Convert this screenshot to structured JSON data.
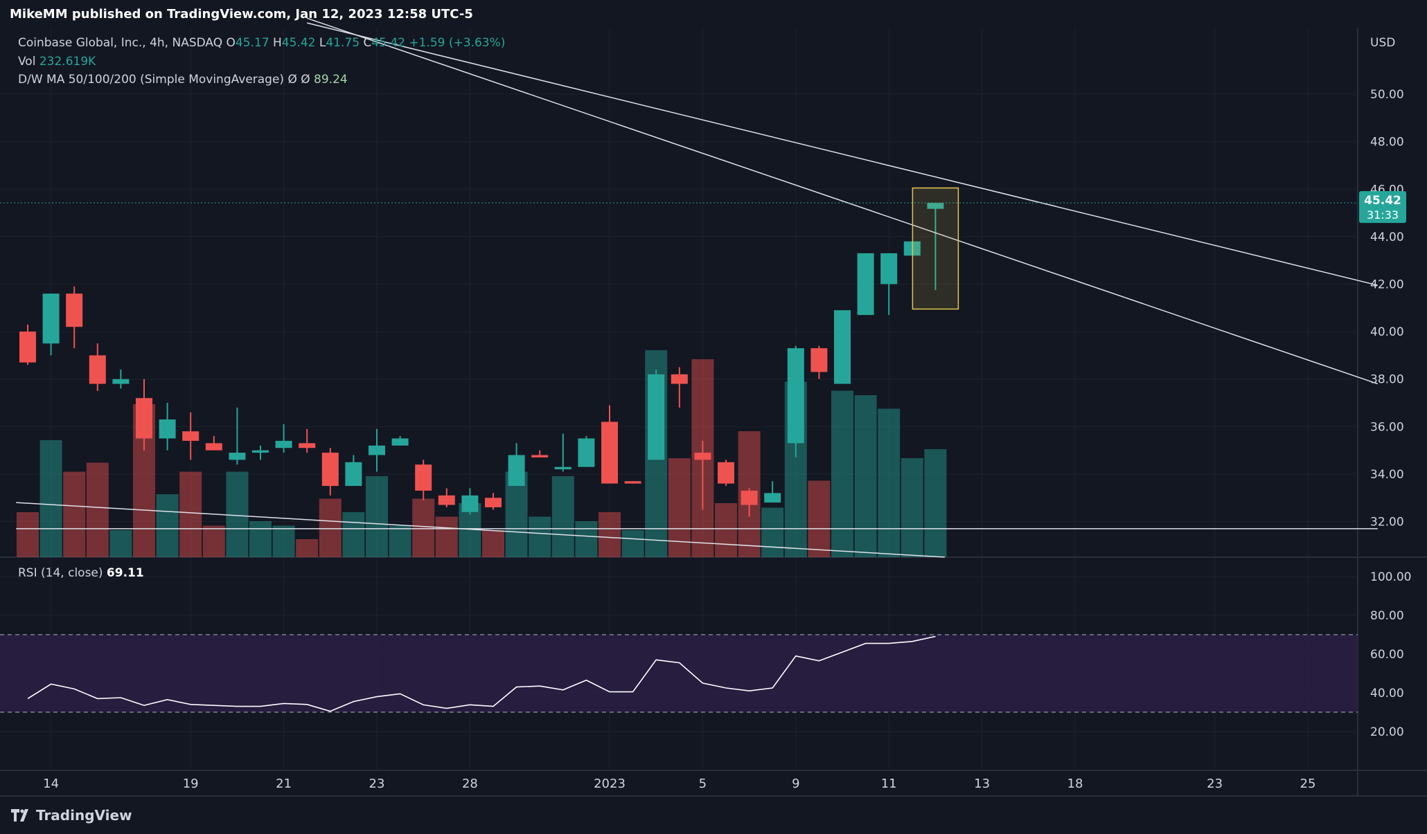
{
  "header": {
    "published_by": "MikeMM published on TradingView.com, Jan 12, 2023 12:58 UTC-5"
  },
  "legend": {
    "symbol": "Coinbase Global, Inc., 4h, NASDAQ",
    "o_label": "O",
    "o_value": "45.17",
    "h_label": "H",
    "h_value": "45.42",
    "l_label": "L",
    "l_value": "41.75",
    "c_label": "C",
    "c_value": "45.42",
    "change": "+1.59 (+3.63%)",
    "vol_label": "Vol",
    "vol_value": "232.619K",
    "ma_label": "D/W MA 50/100/200 (Simple MovingAverage)",
    "ma_values": "Ø Ø",
    "ma_last": "89.24",
    "rsi_label": "RSI (14, close)",
    "rsi_value": "69.11"
  },
  "price_axis": {
    "currency": "USD",
    "last_price": "45.42",
    "countdown": "31:33"
  },
  "footer": {
    "brand": "TradingView"
  },
  "colors": {
    "background": "#131722",
    "up": "#26a69a",
    "down": "#ef5350",
    "rsi_line": "#ffffff",
    "rsi_band": "#2a1f44",
    "highlight": "#e5c64e"
  },
  "chart_data": [
    {
      "type": "candlestick",
      "title": "Coinbase Global, Inc., 4h, NASDAQ",
      "ylim": [
        30.5,
        52.8
      ],
      "y_ticks": [
        "50.00",
        "48.00",
        "46.00",
        "44.00",
        "42.00",
        "40.00",
        "38.00",
        "36.00",
        "34.00",
        "32.00"
      ],
      "x_ticks": [
        {
          "label": "14",
          "i": 1
        },
        {
          "label": "19",
          "i": 7
        },
        {
          "label": "21",
          "i": 11
        },
        {
          "label": "23",
          "i": 15
        },
        {
          "label": "28",
          "i": 19
        },
        {
          "label": "2023",
          "i": 25
        },
        {
          "label": "5",
          "i": 29
        },
        {
          "label": "9",
          "i": 33
        },
        {
          "label": "11",
          "i": 37
        },
        {
          "label": "13",
          "i": 41
        },
        {
          "label": "18",
          "i": 45
        },
        {
          "label": "23",
          "i": 51
        },
        {
          "label": "25",
          "i": 55
        }
      ],
      "candles": [
        {
          "o": 40.0,
          "h": 40.3,
          "l": 38.6,
          "c": 38.7
        },
        {
          "o": 39.5,
          "h": 41.6,
          "l": 39.0,
          "c": 41.6
        },
        {
          "o": 41.6,
          "h": 41.9,
          "l": 39.3,
          "c": 40.2
        },
        {
          "o": 39.0,
          "h": 39.5,
          "l": 37.5,
          "c": 37.8
        },
        {
          "o": 37.8,
          "h": 38.4,
          "l": 37.6,
          "c": 38.0
        },
        {
          "o": 37.2,
          "h": 38.0,
          "l": 35.0,
          "c": 35.5
        },
        {
          "o": 35.5,
          "h": 37.0,
          "l": 35.0,
          "c": 36.3
        },
        {
          "o": 35.8,
          "h": 36.6,
          "l": 34.6,
          "c": 35.4
        },
        {
          "o": 35.3,
          "h": 35.6,
          "l": 35.0,
          "c": 35.0
        },
        {
          "o": 34.6,
          "h": 36.8,
          "l": 34.4,
          "c": 34.9
        },
        {
          "o": 34.9,
          "h": 35.2,
          "l": 34.6,
          "c": 35.0
        },
        {
          "o": 35.1,
          "h": 36.1,
          "l": 34.9,
          "c": 35.4
        },
        {
          "o": 35.3,
          "h": 35.9,
          "l": 34.9,
          "c": 35.1
        },
        {
          "o": 34.9,
          "h": 35.1,
          "l": 33.1,
          "c": 33.5
        },
        {
          "o": 33.5,
          "h": 34.8,
          "l": 33.5,
          "c": 34.5
        },
        {
          "o": 34.8,
          "h": 35.9,
          "l": 34.1,
          "c": 35.2
        },
        {
          "o": 35.2,
          "h": 35.6,
          "l": 35.2,
          "c": 35.5
        },
        {
          "o": 34.4,
          "h": 34.6,
          "l": 32.9,
          "c": 33.3
        },
        {
          "o": 33.1,
          "h": 33.4,
          "l": 32.6,
          "c": 32.7
        },
        {
          "o": 32.4,
          "h": 33.4,
          "l": 32.3,
          "c": 33.1
        },
        {
          "o": 33.0,
          "h": 33.2,
          "l": 32.5,
          "c": 32.6
        },
        {
          "o": 33.5,
          "h": 35.3,
          "l": 33.5,
          "c": 34.8
        },
        {
          "o": 34.8,
          "h": 35.0,
          "l": 34.7,
          "c": 34.7
        },
        {
          "o": 34.2,
          "h": 35.7,
          "l": 34.1,
          "c": 34.3
        },
        {
          "o": 34.3,
          "h": 35.6,
          "l": 34.3,
          "c": 35.5
        },
        {
          "o": 36.2,
          "h": 36.9,
          "l": 33.6,
          "c": 33.6
        },
        {
          "o": 33.7,
          "h": 33.7,
          "l": 33.6,
          "c": 33.6
        },
        {
          "o": 34.6,
          "h": 38.4,
          "l": 34.6,
          "c": 38.2
        },
        {
          "o": 38.2,
          "h": 38.5,
          "l": 36.8,
          "c": 37.8
        },
        {
          "o": 34.9,
          "h": 35.4,
          "l": 32.5,
          "c": 34.6
        },
        {
          "o": 34.5,
          "h": 34.6,
          "l": 33.5,
          "c": 33.6
        },
        {
          "o": 33.3,
          "h": 33.4,
          "l": 32.2,
          "c": 32.7
        },
        {
          "o": 32.8,
          "h": 33.7,
          "l": 32.8,
          "c": 33.2
        },
        {
          "o": 35.3,
          "h": 39.4,
          "l": 34.7,
          "c": 39.3
        },
        {
          "o": 39.3,
          "h": 39.4,
          "l": 38.0,
          "c": 38.3
        },
        {
          "o": 37.8,
          "h": 40.9,
          "l": 37.8,
          "c": 40.9
        },
        {
          "o": 40.7,
          "h": 43.3,
          "l": 40.7,
          "c": 43.3
        },
        {
          "o": 42.0,
          "h": 43.3,
          "l": 40.7,
          "c": 43.3
        },
        {
          "o": 43.2,
          "h": 43.8,
          "l": 43.2,
          "c": 43.8
        },
        {
          "o": 45.17,
          "h": 45.42,
          "l": 41.75,
          "c": 45.42
        }
      ],
      "volume_max": 40,
      "volume": [
        {
          "v": 10,
          "up": false
        },
        {
          "v": 26,
          "up": true
        },
        {
          "v": 19,
          "up": false
        },
        {
          "v": 21,
          "up": false
        },
        {
          "v": 6,
          "up": true
        },
        {
          "v": 34,
          "up": false
        },
        {
          "v": 14,
          "up": true
        },
        {
          "v": 19,
          "up": false
        },
        {
          "v": 7,
          "up": false
        },
        {
          "v": 19,
          "up": true
        },
        {
          "v": 8,
          "up": true
        },
        {
          "v": 7,
          "up": true
        },
        {
          "v": 4,
          "up": false
        },
        {
          "v": 13,
          "up": false
        },
        {
          "v": 10,
          "up": true
        },
        {
          "v": 18,
          "up": true
        },
        {
          "v": 7,
          "up": true
        },
        {
          "v": 13,
          "up": false
        },
        {
          "v": 9,
          "up": false
        },
        {
          "v": 12,
          "up": true
        },
        {
          "v": 6,
          "up": false
        },
        {
          "v": 19,
          "up": true
        },
        {
          "v": 9,
          "up": true
        },
        {
          "v": 18,
          "up": true
        },
        {
          "v": 8,
          "up": true
        },
        {
          "v": 10,
          "up": false
        },
        {
          "v": 6,
          "up": true
        },
        {
          "v": 46,
          "up": true
        },
        {
          "v": 22,
          "up": false
        },
        {
          "v": 44,
          "up": false
        },
        {
          "v": 12,
          "up": false
        },
        {
          "v": 28,
          "up": false
        },
        {
          "v": 11,
          "up": true
        },
        {
          "v": 39,
          "up": true
        },
        {
          "v": 17,
          "up": false
        },
        {
          "v": 37,
          "up": true
        },
        {
          "v": 36,
          "up": true
        },
        {
          "v": 33,
          "up": true
        },
        {
          "v": 22,
          "up": true
        },
        {
          "v": 24,
          "up": true
        }
      ],
      "trendlines": [
        {
          "from": {
            "i": 12.0,
            "p": 53.0
          },
          "to": {
            "i": 58.0,
            "p": 41.95
          }
        },
        {
          "from": {
            "i": 12.0,
            "p": 53.2
          },
          "to": {
            "i": 58.0,
            "p": 37.8
          }
        },
        {
          "from": {
            "i": -0.5,
            "p": 31.7
          },
          "to": {
            "i": 58.0,
            "p": 31.7
          }
        },
        {
          "from": {
            "i": -0.5,
            "p": 32.8
          },
          "to": {
            "i": 39.4,
            "p": 30.5
          }
        }
      ],
      "highlight": {
        "i": 39,
        "top": 46.05,
        "bottom": 40.95
      },
      "reference_line": {
        "p": 45.42
      }
    },
    {
      "type": "line",
      "title": "RSI (14, close)",
      "ylim": [
        0,
        110
      ],
      "y_ticks": [
        "100.00",
        "80.00",
        "60.00",
        "40.00",
        "20.00"
      ],
      "band": [
        30,
        70
      ],
      "values": [
        37,
        44.5,
        42,
        37,
        37.5,
        33.5,
        36.5,
        34,
        33.5,
        33,
        33,
        34.5,
        34,
        30.5,
        35.5,
        38,
        39.5,
        33.8,
        32,
        33.8,
        33,
        43,
        43.5,
        41.5,
        46.5,
        40.5,
        40.5,
        57,
        55.5,
        45,
        42.5,
        41,
        42.5,
        59,
        56.5,
        61,
        65.5,
        65.5,
        66.5,
        69.11
      ]
    }
  ]
}
